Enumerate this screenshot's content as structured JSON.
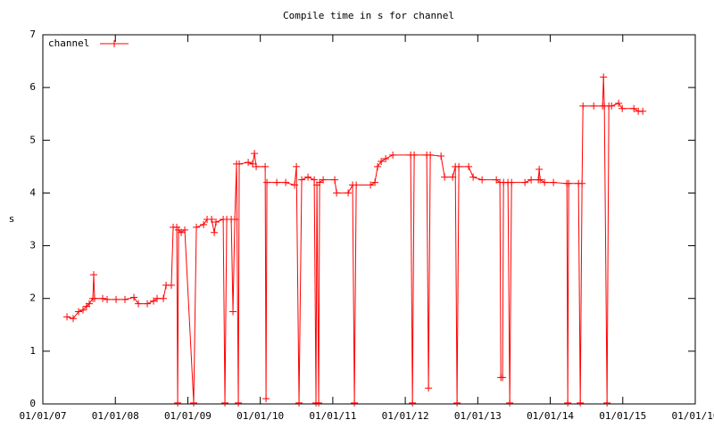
{
  "chart_data": {
    "type": "line",
    "title": "Compile time in s for channel",
    "ylabel": "s",
    "legend": "top-left",
    "xlim": [
      2007,
      2016
    ],
    "ylim": [
      0,
      7
    ],
    "xticks": [
      {
        "value": 2007,
        "label": "01/01/07"
      },
      {
        "value": 2008,
        "label": "01/01/08"
      },
      {
        "value": 2009,
        "label": "01/01/09"
      },
      {
        "value": 2010,
        "label": "01/01/10"
      },
      {
        "value": 2011,
        "label": "01/01/11"
      },
      {
        "value": 2012,
        "label": "01/01/12"
      },
      {
        "value": 2013,
        "label": "01/01/13"
      },
      {
        "value": 2014,
        "label": "01/01/14"
      },
      {
        "value": 2015,
        "label": "01/01/15"
      },
      {
        "value": 2016,
        "label": "01/01/16"
      }
    ],
    "yticks": [
      0,
      1,
      2,
      3,
      4,
      5,
      6,
      7
    ],
    "series": [
      {
        "name": "channel",
        "color": "#ff0000",
        "x": [
          2007.333,
          2007.419,
          2007.493,
          2007.554,
          2007.603,
          2007.64,
          2007.69,
          2007.702,
          2007.714,
          2007.825,
          2007.887,
          2008.01,
          2008.133,
          2008.256,
          2008.318,
          2008.441,
          2008.527,
          2008.576,
          2008.663,
          2008.7,
          2008.773,
          2008.798,
          2008.847,
          2008.86,
          2008.872,
          2008.909,
          2008.958,
          2009.081,
          2009.118,
          2009.217,
          2009.266,
          2009.328,
          2009.365,
          2009.389,
          2009.488,
          2009.512,
          2009.537,
          2009.599,
          2009.623,
          2009.648,
          2009.672,
          2009.697,
          2009.709,
          2009.833,
          2009.894,
          2009.919,
          2009.943,
          2010.067,
          2010.079,
          2010.091,
          2010.227,
          2010.35,
          2010.473,
          2010.498,
          2010.534,
          2010.571,
          2010.658,
          2010.744,
          2010.768,
          2010.781,
          2010.805,
          2010.818,
          2010.867,
          2011.027,
          2011.052,
          2011.212,
          2011.273,
          2011.298,
          2011.323,
          2011.52,
          2011.581,
          2011.618,
          2011.668,
          2011.729,
          2011.828,
          2012.074,
          2012.099,
          2012.123,
          2012.296,
          2012.32,
          2012.345,
          2012.493,
          2012.542,
          2012.653,
          2012.69,
          2012.714,
          2012.739,
          2012.874,
          2012.936,
          2013.059,
          2013.256,
          2013.305,
          2013.318,
          2013.342,
          2013.355,
          2013.416,
          2013.441,
          2013.466,
          2013.65,
          2013.736,
          2013.835,
          2013.847,
          2013.86,
          2013.921,
          2014.044,
          2014.229,
          2014.241,
          2014.254,
          2014.389,
          2014.414,
          2014.438,
          2014.451,
          2014.599,
          2014.722,
          2014.734,
          2014.746,
          2014.783,
          2014.808,
          2014.845,
          2014.943,
          2014.993,
          2015.153,
          2015.214,
          2015.276
        ],
        "values": [
          1.65,
          1.62,
          1.75,
          1.78,
          1.85,
          1.9,
          2.0,
          2.45,
          2.0,
          2.0,
          1.98,
          1.98,
          1.98,
          2.02,
          1.9,
          1.9,
          1.95,
          2.0,
          2.0,
          2.25,
          2.25,
          3.35,
          3.35,
          0.02,
          3.3,
          3.25,
          3.3,
          0.02,
          3.35,
          3.4,
          3.5,
          3.5,
          3.25,
          3.45,
          3.5,
          0.02,
          3.5,
          3.5,
          1.75,
          3.5,
          4.55,
          0.02,
          4.55,
          4.58,
          4.55,
          4.75,
          4.5,
          4.5,
          0.1,
          4.2,
          4.2,
          4.2,
          4.15,
          4.5,
          0.02,
          4.25,
          4.3,
          4.25,
          0.02,
          4.15,
          0.02,
          4.2,
          4.25,
          4.25,
          4.0,
          4.0,
          4.15,
          0.02,
          4.15,
          4.15,
          4.2,
          4.5,
          4.6,
          4.65,
          4.72,
          4.72,
          0.02,
          4.72,
          4.72,
          0.3,
          4.72,
          4.7,
          4.3,
          4.3,
          4.5,
          0.02,
          4.5,
          4.5,
          4.3,
          4.25,
          4.25,
          4.2,
          0.5,
          0.5,
          4.2,
          4.2,
          0.02,
          4.2,
          4.2,
          4.25,
          4.25,
          4.45,
          4.25,
          4.2,
          4.2,
          4.18,
          0.02,
          4.18,
          4.18,
          0.02,
          4.18,
          5.65,
          5.65,
          5.65,
          6.2,
          5.65,
          0.02,
          5.65,
          5.65,
          5.7,
          5.6,
          5.6,
          5.55,
          5.55
        ]
      }
    ]
  }
}
